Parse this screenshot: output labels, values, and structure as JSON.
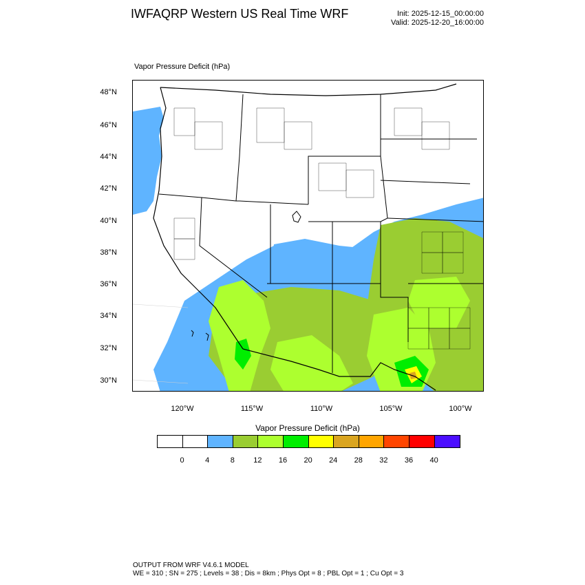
{
  "header": {
    "title": "IWFAQRP Western US Real Time WRF",
    "init": "Init: 2025-12-15_00:00:00",
    "valid": "Valid: 2025-12-20_16:00:00"
  },
  "field_label": "Vapor Pressure Deficit   (hPa)",
  "lat_labels": [
    "48°N",
    "46°N",
    "44°N",
    "42°N",
    "40°N",
    "38°N",
    "36°N",
    "34°N",
    "32°N",
    "30°N"
  ],
  "lon_labels": [
    "120°W",
    "115°W",
    "110°W",
    "105°W",
    "100°W"
  ],
  "colorbar": {
    "title": "Vapor Pressure Deficit  (hPa)",
    "colors": [
      "#ffffff",
      "#ffffff",
      "#5fb4ff",
      "#9acd32",
      "#adff2f",
      "#00ee00",
      "#ffff00",
      "#daa520",
      "#ffa500",
      "#ff4500",
      "#ff0000",
      "#4b0eff"
    ],
    "ticks": [
      "0",
      "4",
      "8",
      "12",
      "16",
      "20",
      "24",
      "28",
      "32",
      "36",
      "40"
    ]
  },
  "footer": {
    "line1": "OUTPUT FROM WRF V4.6.1 MODEL",
    "line2": "WE = 310 ; SN = 275 ; Levels = 38 ; Dis = 8km ; Phys Opt = 8 ; PBL Opt = 1 ; Cu Opt = 3"
  }
}
